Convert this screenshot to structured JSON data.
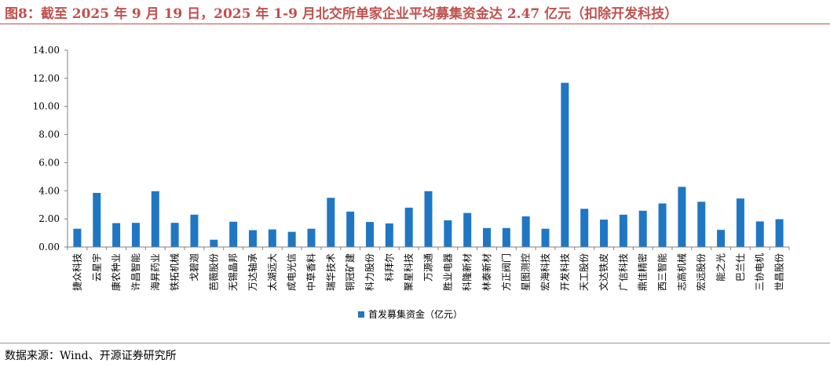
{
  "title": "图8：截至 2025 年 9 月 19 日，2025 年 1-9 月北交所单家企业平均募集资金达 2.47 亿元（扣除开发科技）",
  "source": "数据来源：Wind、开源证券研究所",
  "colors": {
    "title": "#c0504d",
    "bar": "#1f77c4",
    "axis": "#808080",
    "text": "#000000"
  },
  "chart_data": {
    "type": "bar",
    "categories": [
      "捷众科技",
      "云星宇",
      "康农种业",
      "许昌智能",
      "海昇药业",
      "铁拓机械",
      "戈碧迦",
      "芭薇股份",
      "无锡晶邦",
      "万达轴承",
      "太湖远大",
      "成电光信",
      "中草香料",
      "瑞华技术",
      "铜冠矿建",
      "科力股份",
      "科拜尔",
      "聚星科技",
      "万源通",
      "胜业电器",
      "科隆新材",
      "林泰新材",
      "方正阀门",
      "星图测控",
      "宏海科技",
      "开发科技",
      "天工股份",
      "文达铁皮",
      "广信科技",
      "鼎佳精密",
      "西三智能",
      "志高机械",
      "宏远股份",
      "能之光",
      "巴兰仕",
      "三协电机",
      "世昌股份"
    ],
    "series": [
      {
        "name": "首发募集资金（亿元）",
        "values": [
          1.3,
          3.85,
          1.7,
          1.72,
          3.97,
          1.72,
          2.3,
          0.52,
          1.8,
          1.2,
          1.25,
          1.08,
          1.3,
          3.5,
          2.52,
          1.78,
          1.68,
          2.8,
          3.97,
          1.9,
          2.42,
          1.35,
          1.35,
          2.18,
          1.3,
          11.68,
          2.72,
          1.95,
          2.3,
          2.58,
          3.1,
          4.28,
          3.22,
          1.22,
          3.45,
          1.82,
          1.98
        ]
      }
    ],
    "ylim": [
      0,
      14
    ],
    "yticks": [
      "0.00",
      "2.00",
      "4.00",
      "6.00",
      "8.00",
      "10.00",
      "12.00",
      "14.00"
    ],
    "grid": false,
    "legend_position": "bottom-center"
  }
}
